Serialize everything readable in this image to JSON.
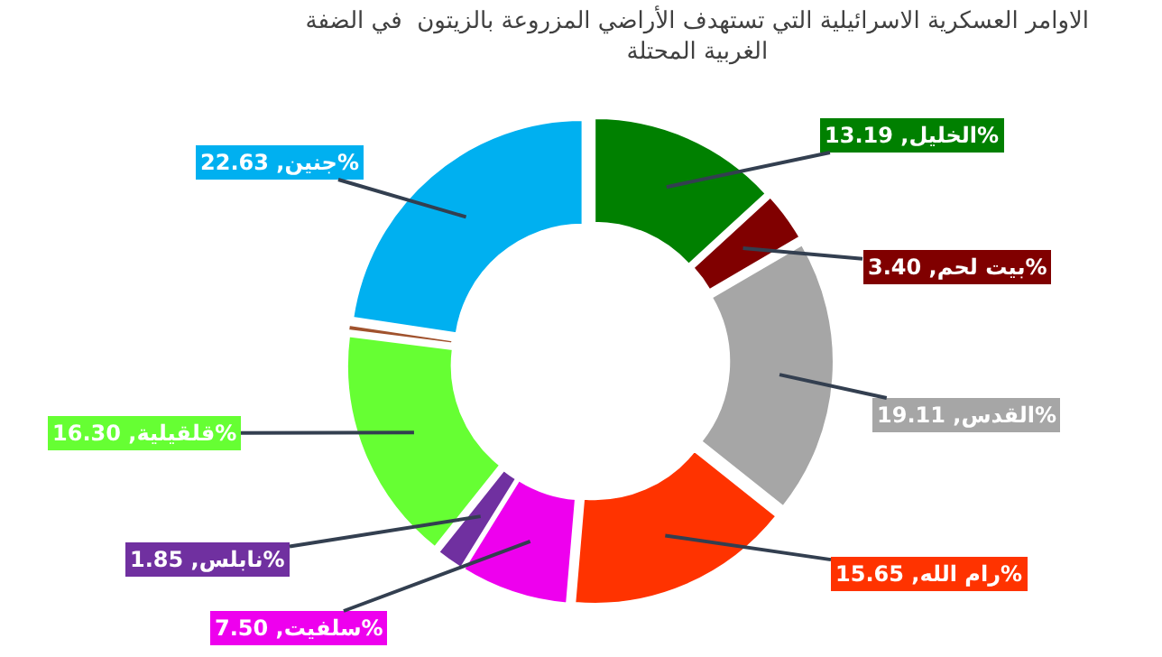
{
  "chart_data": {
    "type": "donut",
    "title": "الاوامر العسكرية الاسرائيلية التي تستهدف الأراضي المزروعة بالزيتون  في الضفة\nالغربية المحتلة",
    "categories": [
      "الخليل",
      "بيت لحم",
      "القدس",
      "رام الله",
      "سلفيت",
      "نابلس",
      "قلقيلية",
      null,
      "جنين"
    ],
    "values": [
      13.19,
      3.4,
      19.11,
      15.65,
      7.5,
      1.85,
      16.3,
      0.37,
      22.63
    ],
    "colors": [
      "#008000",
      "#800000",
      "#a6a6a6",
      "#ff3300",
      "#ee00ee",
      "#7030a0",
      "#66ff33",
      "#a0522d",
      "#00b0f0"
    ],
    "value_labels": [
      "13.19%",
      "3.40%",
      "19.11%",
      "15.65%",
      "7.50%",
      "1.85%",
      "16.30%",
      null,
      "22.63%"
    ],
    "legend": false
  }
}
